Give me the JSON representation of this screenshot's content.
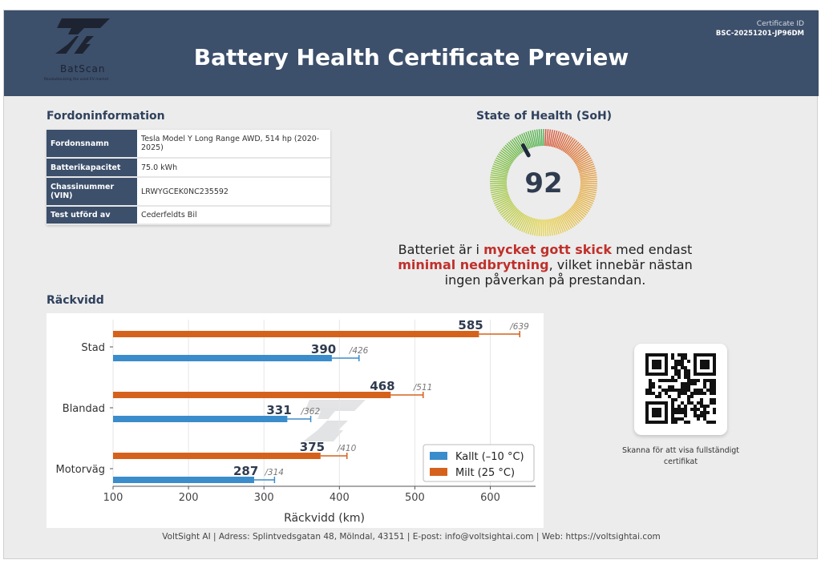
{
  "header": {
    "logo_name": "BatScan",
    "logo_tagline": "Revolutionizing the used EV market",
    "title": "Battery Health Certificate Preview",
    "certificate_id_label": "Certificate ID",
    "certificate_id": "BSC-20251201-JP96DM"
  },
  "vehicle": {
    "section_title": "Fordoninformation",
    "rows": [
      {
        "label": "Fordonsnamn",
        "value": "Tesla Model Y Long Range AWD, 514 hp (2020-2025)"
      },
      {
        "label": "Batterikapacitet",
        "value": "75.0 kWh"
      },
      {
        "label": "Chassinummer (VIN)",
        "value": "LRWYGCEK0NC235592"
      },
      {
        "label": "Test utförd av",
        "value": "Cederfeldts Bil"
      }
    ]
  },
  "soh": {
    "section_title": "State of Health (SoH)",
    "value": "92",
    "gauge_fraction": 0.92,
    "desc_1": "Batteriet är i ",
    "desc_hl1": "mycket gott skick",
    "desc_2": " med endast",
    "desc_hl2": "minimal nedbrytning",
    "desc_3": ", vilket innebär nästan",
    "desc_4": "ingen påverkan på prestandan."
  },
  "range": {
    "section_title": "Räckvidd"
  },
  "chart_data": {
    "type": "bar",
    "orientation": "horizontal",
    "categories": [
      "Stad",
      "Blandad",
      "Motorväg"
    ],
    "series": [
      {
        "name": "Milt (25 °C)",
        "color": "#d5621c",
        "values": [
          585,
          468,
          375
        ],
        "max": [
          639,
          511,
          410
        ]
      },
      {
        "name": "Kallt (–10 °C)",
        "color": "#3a8ccb",
        "values": [
          390,
          331,
          287
        ],
        "max": [
          426,
          362,
          314
        ]
      }
    ],
    "xlabel": "Räckvidd (km)",
    "xlim": [
      100,
      660
    ],
    "xticks": [
      "100",
      "200",
      "300",
      "400",
      "500",
      "600"
    ],
    "legend": [
      {
        "name": "Kallt (–10 °C)",
        "color": "#3a8ccb"
      },
      {
        "name": "Milt (25 °C)",
        "color": "#d5621c"
      }
    ],
    "legend_position": "bottom-right"
  },
  "qr": {
    "caption_1": "Skanna för att visa fullständigt",
    "caption_2": "certifikat"
  },
  "footer": {
    "text": "VoltSight AI | Adress: Splintvedsgatan 48, Mölndal, 43151 | E-post: info@voltsightai.com | Web: https://voltsightai.com"
  }
}
